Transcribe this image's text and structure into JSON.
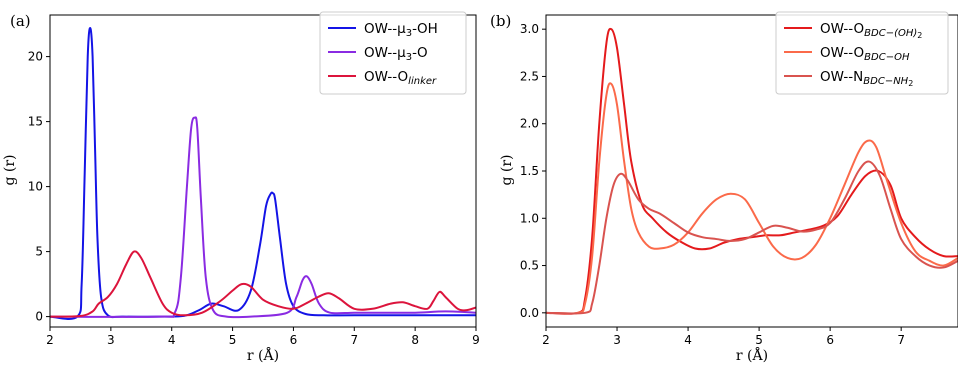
{
  "chart_data": [
    {
      "type": "line",
      "panel_label": "(a)",
      "xlabel": "r (Å)",
      "ylabel": "g (r)",
      "xlim": [
        2,
        9
      ],
      "ylim": [
        -0.8,
        23.2
      ],
      "xticks": [
        2,
        3,
        4,
        5,
        6,
        7,
        8,
        9
      ],
      "yticks": [
        0,
        5,
        10,
        15,
        20
      ],
      "grid": false,
      "legend_position": "top-right",
      "series": [
        {
          "name": "OW--μ3-OH",
          "legend_main": "OW--μ",
          "legend_sub": "3",
          "legend_tail": "-OH",
          "legend_sub_style": "subscript",
          "color": "#1414e6",
          "x": [
            2.0,
            2.45,
            2.52,
            2.57,
            2.62,
            2.66,
            2.7,
            2.74,
            2.78,
            2.84,
            2.95,
            3.2,
            3.8,
            4.2,
            4.45,
            4.65,
            4.85,
            5.1,
            5.3,
            5.45,
            5.55,
            5.62,
            5.66,
            5.7,
            5.78,
            5.88,
            6.0,
            6.2,
            6.5,
            7.0,
            8.0,
            9.0
          ],
          "y": [
            0,
            0,
            2.5,
            11,
            20,
            22.2,
            20,
            13,
            6,
            1.5,
            0.1,
            0,
            0,
            0.05,
            0.5,
            1.0,
            0.8,
            0.5,
            2.0,
            5.5,
            8.5,
            9.4,
            9.5,
            9.0,
            6.0,
            2.5,
            0.8,
            0.2,
            0.1,
            0.1,
            0.1,
            0.1
          ]
        },
        {
          "name": "OW--μ3-O",
          "legend_main": "OW--μ",
          "legend_sub": "3",
          "legend_tail": "-O",
          "legend_sub_style": "subscript",
          "color": "#8a2be2",
          "x": [
            2.0,
            3.8,
            4.05,
            4.15,
            4.25,
            4.32,
            4.38,
            4.42,
            4.48,
            4.56,
            4.68,
            4.9,
            5.3,
            5.9,
            6.05,
            6.15,
            6.22,
            6.3,
            6.42,
            6.6,
            7.0,
            7.5,
            8.0,
            8.5,
            9.0
          ],
          "y": [
            0,
            0,
            0.3,
            3.0,
            10.0,
            14.5,
            15.3,
            14.5,
            9.0,
            3.0,
            0.5,
            0,
            0,
            0.3,
            1.5,
            2.8,
            3.1,
            2.5,
            1.0,
            0.3,
            0.3,
            0.3,
            0.3,
            0.4,
            0.3
          ]
        },
        {
          "name": "OW--Olinker",
          "legend_main": "OW--O",
          "legend_sub": "linker",
          "legend_tail": "",
          "legend_sub_style": "italic-subscript",
          "color": "#dc143c",
          "x": [
            2.0,
            2.5,
            2.7,
            2.8,
            2.95,
            3.1,
            3.25,
            3.38,
            3.5,
            3.65,
            3.85,
            4.0,
            4.2,
            4.5,
            4.8,
            5.0,
            5.15,
            5.3,
            5.5,
            5.75,
            6.0,
            6.2,
            6.4,
            6.58,
            6.75,
            7.0,
            7.3,
            7.6,
            7.8,
            8.0,
            8.2,
            8.3,
            8.4,
            8.5,
            8.7,
            8.85,
            9.0
          ],
          "y": [
            0,
            0.05,
            0.4,
            1.0,
            1.5,
            2.5,
            4.0,
            5.0,
            4.5,
            3.0,
            1.0,
            0.3,
            0.1,
            0.3,
            1.2,
            2.0,
            2.5,
            2.3,
            1.3,
            0.8,
            0.6,
            1.0,
            1.5,
            1.8,
            1.4,
            0.6,
            0.6,
            1.0,
            1.1,
            0.8,
            0.6,
            1.2,
            1.9,
            1.5,
            0.6,
            0.5,
            0.7
          ]
        }
      ]
    },
    {
      "type": "line",
      "panel_label": "(b)",
      "xlabel": "r (Å)",
      "ylabel": "g (r)",
      "xlim": [
        2,
        7.8
      ],
      "ylim": [
        -0.15,
        3.15
      ],
      "xticks": [
        2,
        3,
        4,
        5,
        6,
        7
      ],
      "yticks": [
        0.0,
        0.5,
        1.0,
        1.5,
        2.0,
        2.5,
        3.0
      ],
      "grid": false,
      "legend_position": "top-right",
      "series": [
        {
          "name": "OW--OBDC−(OH)2",
          "legend_main": "OW--O",
          "legend_sub": "BDC−(OH)",
          "legend_sub2": "2",
          "legend_sub_style": "italic-subscript",
          "color": "#e41a1c",
          "x": [
            2.0,
            2.45,
            2.55,
            2.65,
            2.75,
            2.85,
            2.92,
            3.0,
            3.1,
            3.2,
            3.35,
            3.5,
            3.7,
            3.9,
            4.1,
            4.3,
            4.5,
            4.7,
            4.9,
            5.1,
            5.3,
            5.5,
            5.7,
            5.9,
            6.1,
            6.3,
            6.5,
            6.68,
            6.85,
            7.0,
            7.2,
            7.4,
            7.6,
            7.8
          ],
          "y": [
            0,
            0,
            0.15,
            0.8,
            2.0,
            2.85,
            3.0,
            2.8,
            2.2,
            1.6,
            1.15,
            1.0,
            0.85,
            0.75,
            0.68,
            0.68,
            0.74,
            0.78,
            0.8,
            0.82,
            0.82,
            0.85,
            0.88,
            0.92,
            1.02,
            1.25,
            1.45,
            1.5,
            1.35,
            1.0,
            0.8,
            0.67,
            0.6,
            0.6
          ]
        },
        {
          "name": "OW--OBDC−OH",
          "legend_main": "OW--O",
          "legend_sub": "BDC−OH",
          "legend_sub2": "",
          "legend_sub_style": "italic-subscript",
          "color": "#fb6a4a",
          "x": [
            2.0,
            2.45,
            2.55,
            2.65,
            2.75,
            2.85,
            2.92,
            3.0,
            3.1,
            3.2,
            3.3,
            3.45,
            3.6,
            3.8,
            4.0,
            4.2,
            4.4,
            4.6,
            4.8,
            5.0,
            5.2,
            5.4,
            5.6,
            5.8,
            6.0,
            6.2,
            6.4,
            6.53,
            6.65,
            6.8,
            7.0,
            7.2,
            7.4,
            7.6,
            7.8
          ],
          "y": [
            0,
            0,
            0.1,
            0.6,
            1.6,
            2.3,
            2.42,
            2.2,
            1.6,
            1.1,
            0.85,
            0.7,
            0.68,
            0.72,
            0.85,
            1.05,
            1.2,
            1.26,
            1.2,
            0.95,
            0.7,
            0.58,
            0.58,
            0.72,
            1.0,
            1.35,
            1.7,
            1.82,
            1.75,
            1.4,
            0.95,
            0.65,
            0.55,
            0.5,
            0.58
          ]
        },
        {
          "name": "OW--NBDC−NH2",
          "legend_main": "OW--N",
          "legend_sub": "BDC−NH",
          "legend_sub2": "2",
          "legend_sub_style": "italic-subscript",
          "color": "#d9534f",
          "x": [
            2.0,
            2.55,
            2.65,
            2.75,
            2.85,
            2.95,
            3.05,
            3.15,
            3.3,
            3.45,
            3.6,
            3.8,
            4.0,
            4.2,
            4.4,
            4.6,
            4.8,
            5.0,
            5.2,
            5.4,
            5.6,
            5.8,
            6.0,
            6.2,
            6.4,
            6.55,
            6.7,
            6.85,
            7.0,
            7.2,
            7.4,
            7.6,
            7.8
          ],
          "y": [
            0,
            0,
            0.1,
            0.5,
            1.0,
            1.35,
            1.47,
            1.4,
            1.2,
            1.1,
            1.05,
            0.95,
            0.85,
            0.8,
            0.78,
            0.76,
            0.78,
            0.85,
            0.92,
            0.9,
            0.86,
            0.88,
            0.95,
            1.2,
            1.5,
            1.6,
            1.45,
            1.1,
            0.78,
            0.6,
            0.5,
            0.48,
            0.55
          ]
        }
      ]
    }
  ]
}
